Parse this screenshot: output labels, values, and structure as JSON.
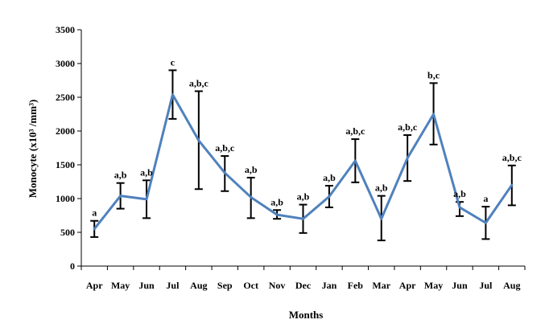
{
  "chart_data": {
    "type": "line",
    "xlabel": "Months",
    "ylabel": "Monocyte (x10³ /mm³)",
    "ylim": [
      0,
      3500
    ],
    "yticks": [
      0,
      500,
      1000,
      1500,
      2000,
      2500,
      3000,
      3500
    ],
    "grid": false,
    "categories": [
      "Apr",
      "May",
      "Jun",
      "Jul",
      "Aug",
      "Sep",
      "Oct",
      "Nov",
      "Dec",
      "Jan",
      "Feb",
      "Mar",
      "Apr",
      "May",
      "Jun",
      "Jul",
      "Aug"
    ],
    "series": [
      {
        "color": "#4f81bd",
        "values": [
          550,
          1040,
          990,
          2540,
          1860,
          1380,
          1020,
          760,
          700,
          1030,
          1560,
          700,
          1600,
          2250,
          870,
          640,
          1200
        ],
        "error_low": [
          430,
          850,
          710,
          2180,
          1140,
          1110,
          710,
          700,
          490,
          870,
          1240,
          380,
          1260,
          1800,
          740,
          400,
          900
        ],
        "error_high": [
          670,
          1230,
          1270,
          2900,
          2590,
          1630,
          1310,
          830,
          910,
          1190,
          1880,
          1040,
          1940,
          2710,
          950,
          880,
          1490
        ],
        "labels": [
          "a",
          "a,b",
          "a,b",
          "c",
          "a,b,c",
          "a,b,c",
          "a,b",
          "a,b",
          "a,b",
          "a,b",
          "a,b,c",
          "a,b",
          "a,b,c",
          "b,c",
          "a,b",
          "a",
          "a,b,c"
        ]
      }
    ]
  }
}
